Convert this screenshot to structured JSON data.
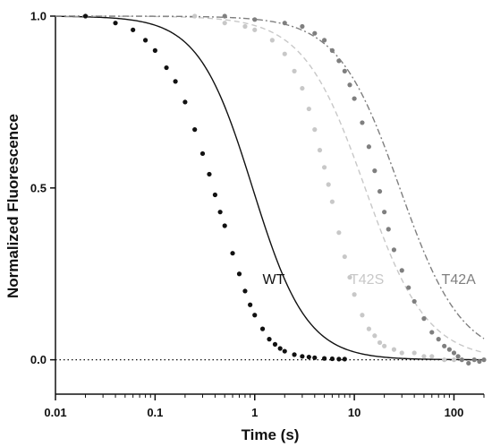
{
  "chart_data": {
    "type": "scatter",
    "title": "",
    "xlabel": "Time (s)",
    "ylabel": "Normalized Fluorescence",
    "x_scale": "log",
    "xlim": [
      0.01,
      200
    ],
    "ylim": [
      -0.1,
      1.0
    ],
    "x_ticks": [
      0.01,
      0.1,
      1,
      10,
      100
    ],
    "x_tick_labels": [
      "0.01",
      "0.1",
      "1",
      "10",
      "100"
    ],
    "y_ticks": [
      0.0,
      0.5,
      1.0
    ],
    "y_tick_labels": [
      "0.0",
      "0.5",
      "1.0"
    ],
    "baseline": 0.0,
    "grid": false,
    "legend": "none",
    "series": [
      {
        "name": "WT",
        "color": "#111111",
        "fit": {
          "k": 1.05,
          "n": 1.6
        },
        "fit_style": "solid",
        "points": [
          [
            0.02,
            1.0
          ],
          [
            0.04,
            0.98
          ],
          [
            0.06,
            0.96
          ],
          [
            0.08,
            0.93
          ],
          [
            0.1,
            0.9
          ],
          [
            0.13,
            0.85
          ],
          [
            0.16,
            0.81
          ],
          [
            0.2,
            0.75
          ],
          [
            0.25,
            0.67
          ],
          [
            0.3,
            0.6
          ],
          [
            0.35,
            0.54
          ],
          [
            0.4,
            0.48
          ],
          [
            0.45,
            0.43
          ],
          [
            0.5,
            0.39
          ],
          [
            0.6,
            0.31
          ],
          [
            0.7,
            0.25
          ],
          [
            0.8,
            0.2
          ],
          [
            0.9,
            0.16
          ],
          [
            1.0,
            0.13
          ],
          [
            1.2,
            0.09
          ],
          [
            1.4,
            0.06
          ],
          [
            1.6,
            0.045
          ],
          [
            1.8,
            0.033
          ],
          [
            2.0,
            0.025
          ],
          [
            2.5,
            0.015
          ],
          [
            3.0,
            0.01
          ],
          [
            3.5,
            0.008
          ],
          [
            4.0,
            0.006
          ],
          [
            5.0,
            0.004
          ],
          [
            6.0,
            0.003
          ],
          [
            7.0,
            0.002
          ],
          [
            8.0,
            0.002
          ]
        ]
      },
      {
        "name": "T42S",
        "color": "#c8c8c8",
        "fit": {
          "k": 0.078,
          "n": 1.4
        },
        "fit_style": "dashed",
        "points": [
          [
            0.25,
            1.0
          ],
          [
            0.5,
            0.98
          ],
          [
            0.8,
            0.97
          ],
          [
            1.0,
            0.96
          ],
          [
            1.5,
            0.93
          ],
          [
            2.0,
            0.89
          ],
          [
            2.5,
            0.84
          ],
          [
            3.0,
            0.79
          ],
          [
            3.5,
            0.73
          ],
          [
            4.0,
            0.67
          ],
          [
            4.5,
            0.61
          ],
          [
            5.0,
            0.56
          ],
          [
            5.5,
            0.51
          ],
          [
            6.0,
            0.46
          ],
          [
            7.0,
            0.37
          ],
          [
            8.0,
            0.3
          ],
          [
            9.0,
            0.24
          ],
          [
            10.0,
            0.19
          ],
          [
            12.0,
            0.13
          ],
          [
            14.0,
            0.09
          ],
          [
            16.0,
            0.07
          ],
          [
            18.0,
            0.05
          ],
          [
            20.0,
            0.04
          ],
          [
            25.0,
            0.03
          ],
          [
            30.0,
            0.02
          ],
          [
            40.0,
            0.02
          ],
          [
            50.0,
            0.01
          ],
          [
            60.0,
            0.01
          ],
          [
            80.0,
            0.0
          ],
          [
            100.0,
            0.0
          ]
        ]
      },
      {
        "name": "T42A",
        "color": "#7f7f7f",
        "fit": {
          "k": 0.035,
          "n": 1.4
        },
        "fit_style": "dashdot",
        "points": [
          [
            0.5,
            1.0
          ],
          [
            1.0,
            0.99
          ],
          [
            2.0,
            0.98
          ],
          [
            3.0,
            0.97
          ],
          [
            4.0,
            0.95
          ],
          [
            5.0,
            0.93
          ],
          [
            6.0,
            0.9
          ],
          [
            7.0,
            0.87
          ],
          [
            8.0,
            0.84
          ],
          [
            9.0,
            0.8
          ],
          [
            10.0,
            0.76
          ],
          [
            12.0,
            0.69
          ],
          [
            14.0,
            0.62
          ],
          [
            16.0,
            0.55
          ],
          [
            18.0,
            0.49
          ],
          [
            20.0,
            0.43
          ],
          [
            22.0,
            0.38
          ],
          [
            25.0,
            0.32
          ],
          [
            30.0,
            0.26
          ],
          [
            35.0,
            0.21
          ],
          [
            40.0,
            0.17
          ],
          [
            50.0,
            0.12
          ],
          [
            60.0,
            0.08
          ],
          [
            70.0,
            0.06
          ],
          [
            80.0,
            0.04
          ],
          [
            90.0,
            0.03
          ],
          [
            100.0,
            0.02
          ],
          [
            110.0,
            0.01
          ],
          [
            120.0,
            0.0
          ],
          [
            140.0,
            -0.01
          ],
          [
            160.0,
            0.0
          ],
          [
            180.0,
            -0.005
          ],
          [
            200.0,
            0.0
          ]
        ]
      }
    ],
    "annotations": [
      {
        "text": "WT",
        "x": 1.2,
        "y": 0.22
      },
      {
        "text": "T42S",
        "x": 9.0,
        "y": 0.22
      },
      {
        "text": "T42A",
        "x": 75.0,
        "y": 0.22
      }
    ]
  }
}
